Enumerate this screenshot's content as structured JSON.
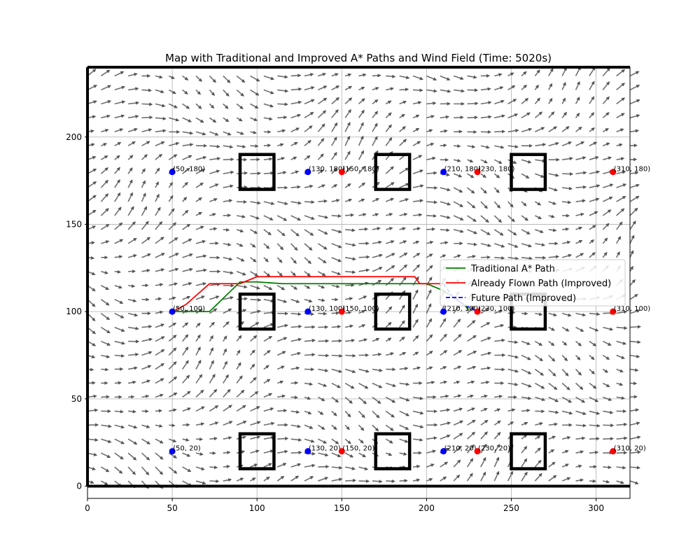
{
  "chart_data": {
    "type": "line",
    "title": "Map with Traditional and Improved A* Paths and Wind Field (Time: 5020s)",
    "xlabel": "",
    "ylabel": "",
    "xlim": [
      0,
      320
    ],
    "ylim": [
      -7,
      240
    ],
    "xticks": [
      0,
      50,
      100,
      150,
      200,
      250,
      300
    ],
    "yticks": [
      0,
      50,
      100,
      150,
      200
    ],
    "grid": true,
    "legend_position": "center-right",
    "colors": {
      "traditional": "#008000",
      "flown": "#ff0000",
      "future": "#0000ff",
      "wind": "#555555",
      "obstacle": "#000000",
      "blue_point": "#0000ff",
      "red_point": "#ff0000"
    },
    "legend": [
      {
        "key": "traditional",
        "label": "Traditional A* Path",
        "style": "solid"
      },
      {
        "key": "flown",
        "label": "Already Flown Path (Improved)",
        "style": "solid"
      },
      {
        "key": "future",
        "label": "Future Path (Improved)",
        "style": "dashed"
      }
    ],
    "series": [
      {
        "key": "traditional",
        "x": [
          50,
          72,
          90,
          100,
          115,
          150,
          200,
          210,
          222,
          225
        ],
        "y": [
          100,
          100,
          117,
          117,
          116,
          116,
          116,
          112,
          104,
          101
        ]
      },
      {
        "key": "flown",
        "x": [
          50,
          58,
          72,
          90,
          95,
          100,
          140,
          193,
          196,
          210
        ],
        "y": [
          100,
          104,
          116,
          116,
          118,
          120,
          120,
          120,
          116,
          116
        ]
      },
      {
        "key": "future",
        "x": [
          210,
          215,
          222,
          230
        ],
        "y": [
          116,
          109,
          104,
          100
        ]
      }
    ],
    "obstacles": [
      {
        "x": 90,
        "y": 170
      },
      {
        "x": 170,
        "y": 170
      },
      {
        "x": 250,
        "y": 170
      },
      {
        "x": 90,
        "y": 90
      },
      {
        "x": 170,
        "y": 90
      },
      {
        "x": 250,
        "y": 90
      },
      {
        "x": 90,
        "y": 10
      },
      {
        "x": 170,
        "y": 10
      },
      {
        "x": 250,
        "y": 10
      }
    ],
    "obstacle_size": 20,
    "walls_y": [
      0,
      240
    ],
    "points": [
      {
        "x": 50,
        "y": 180,
        "color": "blue_point",
        "label": "(50, 180)"
      },
      {
        "x": 130,
        "y": 180,
        "color": "blue_point",
        "label": "(130, 180)"
      },
      {
        "x": 150,
        "y": 180,
        "color": "red_point",
        "label": "(150, 180)"
      },
      {
        "x": 210,
        "y": 180,
        "color": "blue_point",
        "label": "(210, 180)"
      },
      {
        "x": 230,
        "y": 180,
        "color": "red_point",
        "label": "(230, 180)"
      },
      {
        "x": 310,
        "y": 180,
        "color": "red_point",
        "label": "(310, 180)"
      },
      {
        "x": 50,
        "y": 100,
        "color": "blue_point",
        "label": "(50, 100)"
      },
      {
        "x": 130,
        "y": 100,
        "color": "blue_point",
        "label": "(130, 100)"
      },
      {
        "x": 150,
        "y": 100,
        "color": "red_point",
        "label": "(150, 100)"
      },
      {
        "x": 210,
        "y": 100,
        "color": "blue_point",
        "label": "(210, 100)"
      },
      {
        "x": 230,
        "y": 100,
        "color": "red_point",
        "label": "(230, 100)"
      },
      {
        "x": 310,
        "y": 100,
        "color": "red_point",
        "label": "(310, 100)"
      },
      {
        "x": 50,
        "y": 20,
        "color": "blue_point",
        "label": "(50, 20)"
      },
      {
        "x": 130,
        "y": 20,
        "color": "blue_point",
        "label": "(130, 20)"
      },
      {
        "x": 150,
        "y": 20,
        "color": "red_point",
        "label": "(150, 20)"
      },
      {
        "x": 210,
        "y": 20,
        "color": "blue_point",
        "label": "(210, 20)"
      },
      {
        "x": 230,
        "y": 20,
        "color": "red_point",
        "label": "(230, 20)"
      },
      {
        "x": 310,
        "y": 20,
        "color": "red_point",
        "label": "(310, 20)"
      }
    ]
  }
}
